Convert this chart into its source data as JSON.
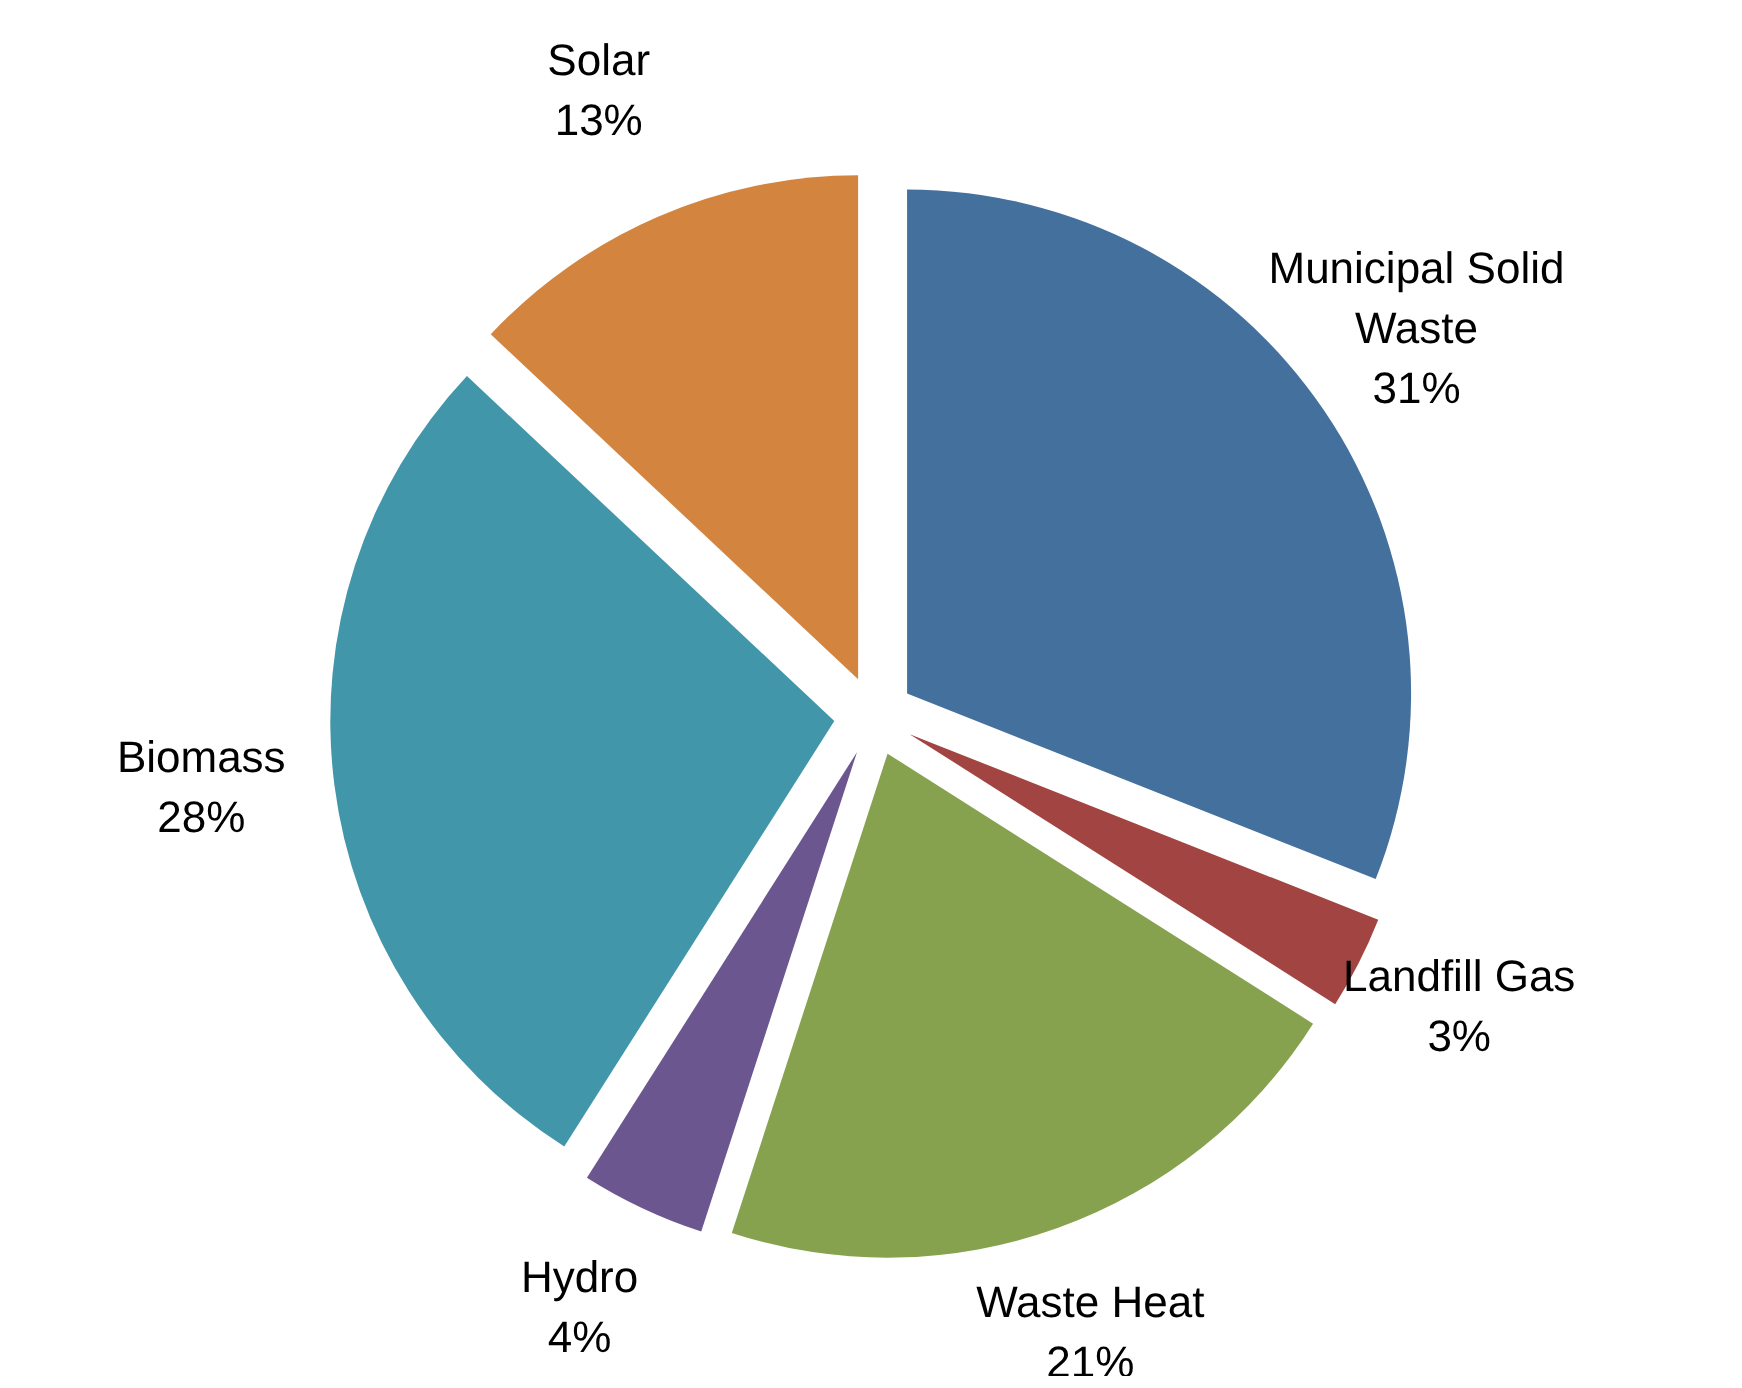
{
  "chart_data": {
    "type": "pie",
    "categories": [
      "Municipal Solid Waste",
      "Landfill Gas",
      "Waste Heat",
      "Hydro",
      "Biomass",
      "Solar"
    ],
    "values": [
      31,
      3,
      21,
      4,
      28,
      13
    ],
    "value_labels": [
      "31%",
      "3%",
      "21%",
      "4%",
      "28%",
      "13%"
    ],
    "colors": [
      "#44709d",
      "#a24441",
      "#86a24f",
      "#6b568f",
      "#4296a9",
      "#d38540"
    ]
  }
}
